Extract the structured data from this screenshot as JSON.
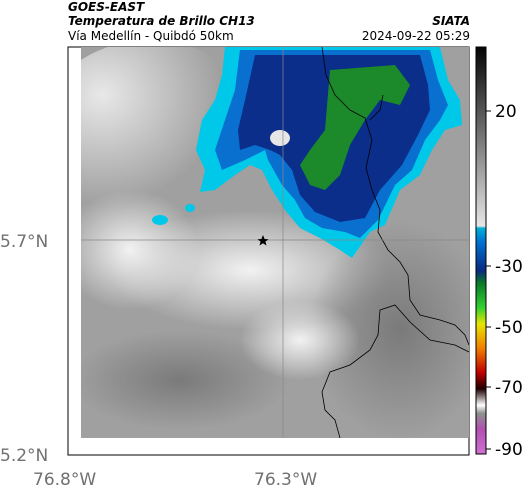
{
  "header": {
    "satellite": "GOES-EAST",
    "product": "Temperatura de Brillo CH13",
    "location": "Vía Medellín - Quibdó 50km",
    "agency": "SIATA",
    "timestamp": "2024-09-22 05:29"
  },
  "map": {
    "lat_labels": [
      "5.7°N",
      "5.2°N"
    ],
    "lon_labels": [
      "76.8°W",
      "76.3°W"
    ],
    "marker": "star-marker",
    "colors": {
      "cloud_cold": "#1c8a2a",
      "cloud_mid": "#0a3d9a",
      "cloud_edge": "#00c8e8",
      "background": "#9a9a9a"
    }
  },
  "colorbar": {
    "ticks": [
      "20",
      "-30",
      "-50",
      "-70",
      "-90"
    ]
  }
}
